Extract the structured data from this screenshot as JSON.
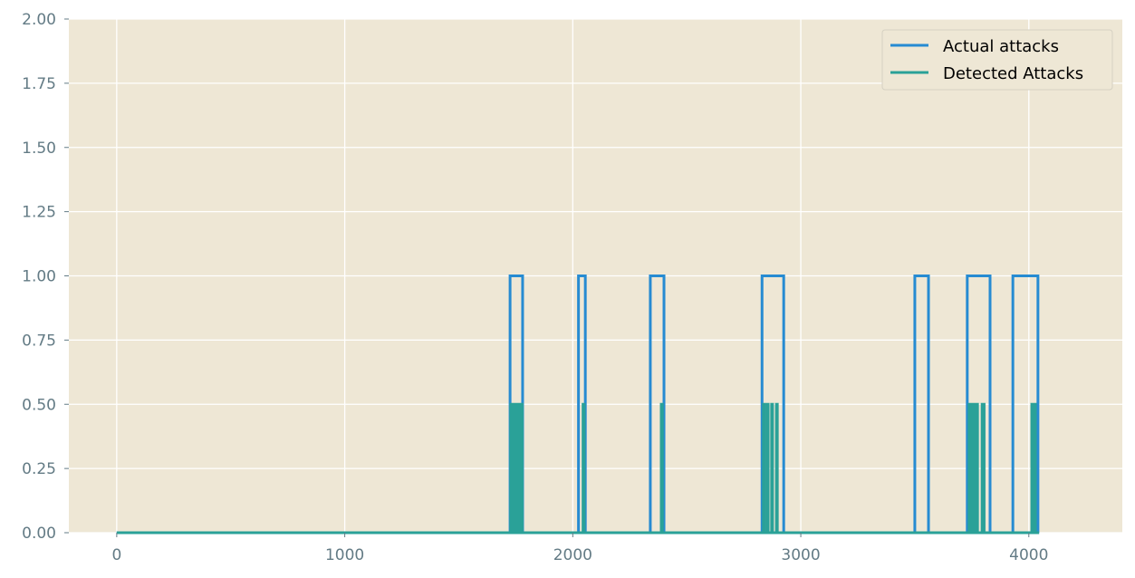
{
  "chart_data": {
    "type": "line",
    "title": "",
    "xlabel": "",
    "ylabel": "",
    "xlim": [
      -210,
      4410
    ],
    "ylim": [
      0,
      2
    ],
    "x_ticks": [
      0,
      1000,
      2000,
      3000,
      4000
    ],
    "x_tick_labels": [
      "0",
      "1000",
      "2000",
      "3000",
      "4000"
    ],
    "y_ticks": [
      0,
      0.25,
      0.5,
      0.75,
      1.0,
      1.25,
      1.5,
      1.75,
      2.0
    ],
    "y_tick_labels": [
      "0.00",
      "0.25",
      "0.50",
      "0.75",
      "1.00",
      "1.25",
      "1.50",
      "1.75",
      "2.00"
    ],
    "grid": true,
    "legend_position": "top-right",
    "colors": {
      "plot_background": "#eee7d5",
      "grid": "#ffffff",
      "tick_label": "#637b85"
    },
    "series": [
      {
        "name": "Actual attacks",
        "color": "#268bd2",
        "step_segments": [
          {
            "start": 1725,
            "end": 1780,
            "value": 1.0
          },
          {
            "start": 2025,
            "end": 2055,
            "value": 1.0
          },
          {
            "start": 2340,
            "end": 2400,
            "value": 1.0
          },
          {
            "start": 2830,
            "end": 2925,
            "value": 1.0
          },
          {
            "start": 3500,
            "end": 3560,
            "value": 1.0
          },
          {
            "start": 3730,
            "end": 3830,
            "value": 1.0
          },
          {
            "start": 3930,
            "end": 4040,
            "value": 1.0
          }
        ]
      },
      {
        "name": "Detected Attacks",
        "color": "#2aa198",
        "step_segments": [
          {
            "start": 1728,
            "end": 1730,
            "value": 0.5
          },
          {
            "start": 1735,
            "end": 1737,
            "value": 0.5
          },
          {
            "start": 1741,
            "end": 1744,
            "value": 0.5
          },
          {
            "start": 1748,
            "end": 1751,
            "value": 0.5
          },
          {
            "start": 1755,
            "end": 1758,
            "value": 0.5
          },
          {
            "start": 1762,
            "end": 1765,
            "value": 0.5
          },
          {
            "start": 1769,
            "end": 1772,
            "value": 0.5
          },
          {
            "start": 1775,
            "end": 1778,
            "value": 0.5
          },
          {
            "start": 2045,
            "end": 2050,
            "value": 0.5
          },
          {
            "start": 2388,
            "end": 2393,
            "value": 0.5
          },
          {
            "start": 2836,
            "end": 2841,
            "value": 0.5
          },
          {
            "start": 2853,
            "end": 2857,
            "value": 0.5
          },
          {
            "start": 2872,
            "end": 2876,
            "value": 0.5
          },
          {
            "start": 2893,
            "end": 2897,
            "value": 0.5
          },
          {
            "start": 3738,
            "end": 3741,
            "value": 0.5
          },
          {
            "start": 3745,
            "end": 3748,
            "value": 0.5
          },
          {
            "start": 3752,
            "end": 3755,
            "value": 0.5
          },
          {
            "start": 3765,
            "end": 3768,
            "value": 0.5
          },
          {
            "start": 3772,
            "end": 3775,
            "value": 0.5
          },
          {
            "start": 3795,
            "end": 3798,
            "value": 0.5
          },
          {
            "start": 3801,
            "end": 3804,
            "value": 0.5
          },
          {
            "start": 4013,
            "end": 4016,
            "value": 0.5
          },
          {
            "start": 4020,
            "end": 4023,
            "value": 0.5
          },
          {
            "start": 4026,
            "end": 4029,
            "value": 0.5
          }
        ]
      }
    ]
  }
}
